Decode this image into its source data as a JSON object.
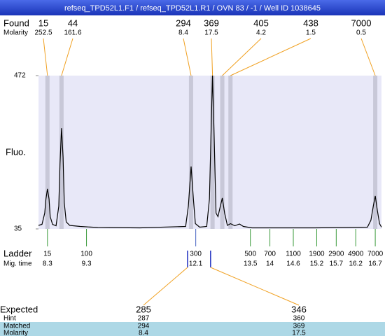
{
  "title": "refseq_TPD52L1.F1 / refseq_TPD52L1.R1 / OVN 83 / -1 / Well ID 1038645",
  "chart_data": {
    "type": "line",
    "ylabel": "Fluo.",
    "ylim": [
      35,
      472
    ],
    "yticks": [
      35,
      472
    ],
    "xlim": [
      8.07,
      16.86
    ],
    "color": "#000000",
    "x": [
      8.07,
      8.16,
      8.23,
      8.26,
      8.3,
      8.34,
      8.37,
      8.43,
      8.52,
      8.59,
      8.62,
      8.66,
      8.7,
      8.73,
      8.78,
      8.87,
      9.14,
      9.59,
      10.67,
      11.84,
      11.91,
      11.98,
      12.04,
      12.09,
      12.2,
      12.38,
      12.45,
      12.5,
      12.53,
      12.57,
      12.62,
      12.67,
      12.73,
      12.78,
      12.84,
      12.91,
      12.99,
      13.1,
      13.22,
      13.32,
      13.54,
      15.16,
      16.5,
      16.59,
      16.65,
      16.7,
      16.75,
      16.81,
      16.86
    ],
    "values": [
      45,
      48,
      80,
      120,
      149,
      120,
      70,
      48,
      44,
      100,
      220,
      322,
      240,
      110,
      55,
      45,
      42,
      39,
      38,
      42,
      100,
      213,
      120,
      50,
      40,
      42,
      120,
      350,
      472,
      300,
      80,
      70,
      100,
      123,
      80,
      45,
      50,
      44,
      49,
      42,
      38,
      38,
      40,
      60,
      100,
      129,
      90,
      50,
      40
    ],
    "found": {
      "label": "Found",
      "molarity_label": "Molarity",
      "sizes": [
        15,
        44,
        294,
        369,
        405,
        438,
        7000
      ],
      "molarity": [
        252.5,
        161.6,
        8.4,
        17.5,
        4.2,
        1.5,
        0.5
      ],
      "x": [
        8.3,
        8.66,
        11.98,
        12.53,
        12.78,
        12.99,
        16.7
      ]
    },
    "ladder": {
      "label": "Ladder",
      "time_label": "Mig. time",
      "sizes": [
        15,
        100,
        300,
        500,
        700,
        1100,
        1900,
        2900,
        4900,
        7000
      ],
      "x": [
        8.3,
        9.3,
        12.1,
        13.5,
        14,
        14.6,
        15.2,
        15.7,
        16.2,
        16.7
      ]
    },
    "expected": {
      "row_labels": [
        "Expected",
        "Hint",
        "Matched",
        "Molarity"
      ],
      "x": [
        11.89,
        12.48
      ],
      "columns": [
        [
          285,
          287,
          294,
          8.4
        ],
        [
          346,
          360,
          369,
          17.5
        ]
      ]
    }
  }
}
